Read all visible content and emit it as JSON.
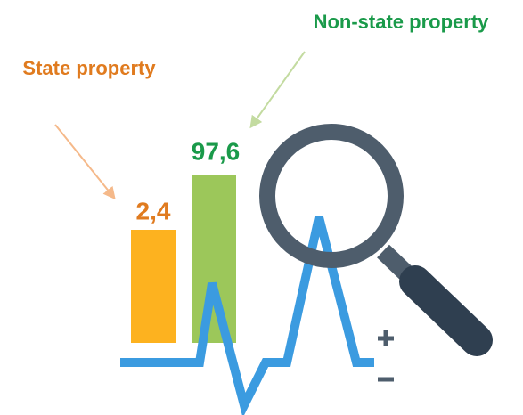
{
  "items": [
    {
      "label": "State property",
      "value": "2,4"
    },
    {
      "label": "Non-state property",
      "value": "97,6"
    }
  ]
}
